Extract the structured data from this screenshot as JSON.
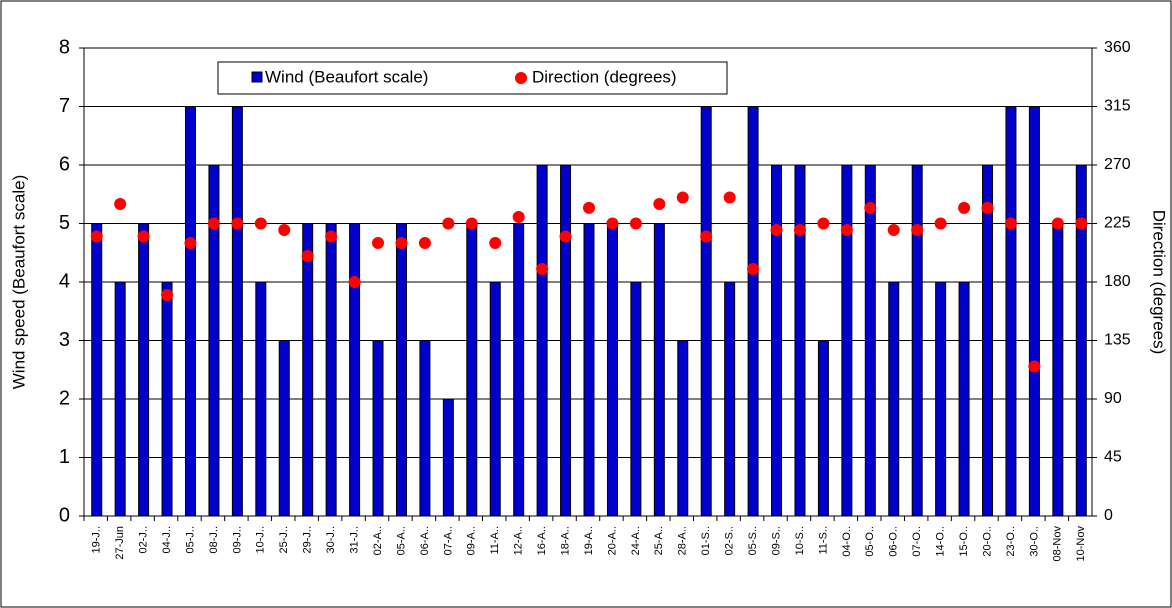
{
  "chart_data": {
    "type": "bar_scatter",
    "y_label": "Wind speed (Beaufort scale)",
    "y2_label": "Direction (degrees)",
    "categories": [
      "19-J..",
      "27-Jun",
      "02-J..",
      "04-J..",
      "05-J..",
      "08-J..",
      "09-J..",
      "10-J..",
      "25-J..",
      "29-J..",
      "30-J..",
      "31-J..",
      "02-A..",
      "05-A..",
      "06-A..",
      "07-A..",
      "09-A..",
      "11-A..",
      "12-A..",
      "16-A..",
      "18-A..",
      "19-A..",
      "20-A..",
      "24-A..",
      "25-A..",
      "28-A..",
      "01-S..",
      "02-S..",
      "05-S..",
      "09-S..",
      "10-S..",
      "11-S..",
      "04-O..",
      "05-O..",
      "06-O..",
      "07-O..",
      "14-O..",
      "15-O..",
      "20-O..",
      "23-O..",
      "30-O..",
      "08-Nov",
      "10-Nov"
    ],
    "series": [
      {
        "name": "Wind (Beaufort scale)",
        "type": "bar",
        "color": "#0000cc",
        "values": [
          5,
          4,
          5,
          4,
          7,
          6,
          7,
          4,
          3,
          5,
          5,
          5,
          3,
          5,
          3,
          2,
          5,
          4,
          5,
          6,
          6,
          5,
          5,
          4,
          5,
          3,
          7,
          4,
          7,
          6,
          6,
          3,
          6,
          6,
          4,
          6,
          4,
          4,
          6,
          7,
          7,
          5,
          6
        ]
      },
      {
        "name": "Direction (degrees)",
        "type": "scatter",
        "axis": "y2",
        "color": "#ff0000",
        "values": [
          215,
          240,
          215,
          170,
          210,
          225,
          225,
          225,
          220,
          200,
          215,
          180,
          210,
          210,
          210,
          225,
          225,
          210,
          230,
          190,
          215,
          237,
          225,
          225,
          240,
          245,
          215,
          245,
          190,
          220,
          220,
          225,
          220,
          237,
          220,
          220,
          225,
          237,
          237,
          225,
          115,
          225,
          225
        ]
      }
    ],
    "ylim": [
      0,
      8
    ],
    "yticks": [
      0,
      1,
      2,
      3,
      4,
      5,
      6,
      7,
      8
    ],
    "y2lim": [
      0,
      360
    ],
    "y2ticks": [
      0,
      45,
      90,
      135,
      180,
      225,
      270,
      315,
      360
    ],
    "grid": true
  }
}
